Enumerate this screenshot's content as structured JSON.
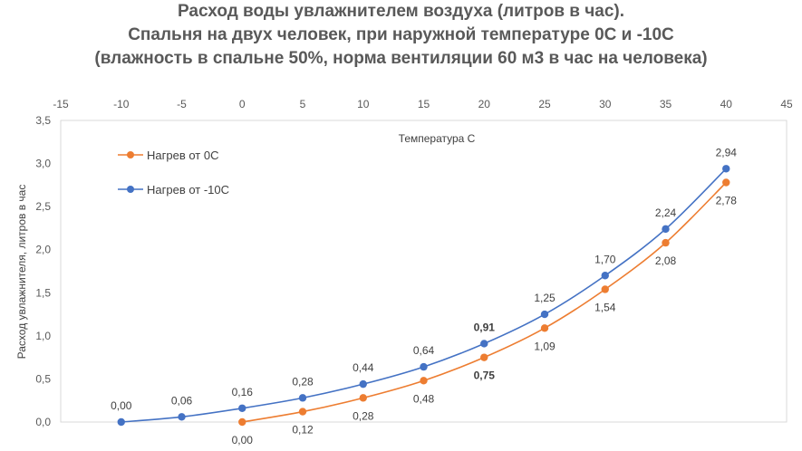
{
  "chart_data": {
    "type": "line",
    "title_lines": [
      "Расход воды увлажнителем воздуха (литров в час).",
      "Спальня на двух человек, при наружной температуре 0С и -10С",
      "(влажность в спальне 50%, норма вентиляции 60 м3 в час на человека)"
    ],
    "xlabel": "Температура С",
    "ylabel": "Расход увлажнителя, литров в час",
    "xlim": [
      -15,
      45
    ],
    "ylim": [
      0,
      3.5
    ],
    "x_ticks": [
      "-15",
      "-10",
      "-5",
      "0",
      "5",
      "10",
      "15",
      "20",
      "25",
      "30",
      "35",
      "40",
      "45"
    ],
    "y_ticks": [
      "0,0",
      "0,5",
      "1,0",
      "1,5",
      "2,0",
      "2,5",
      "3,0",
      "3,5"
    ],
    "x_axis_position": "top",
    "grid": false,
    "legend_position": "top-left",
    "series": [
      {
        "name": "Нагрев от 0С",
        "color": "#ED7D31",
        "x": [
          0,
          5,
          10,
          15,
          20,
          25,
          30,
          35,
          40
        ],
        "values": [
          0.0,
          0.12,
          0.28,
          0.48,
          0.75,
          1.09,
          1.54,
          2.08,
          2.78
        ],
        "labels": [
          "0,00",
          "0,12",
          "0,28",
          "0,48",
          "0,75",
          "1,09",
          "1,54",
          "2,08",
          "2,78"
        ],
        "label_position": "below"
      },
      {
        "name": "Нагрев от -10С",
        "color": "#4472C4",
        "x": [
          -10,
          -5,
          0,
          5,
          10,
          15,
          20,
          25,
          30,
          35,
          40
        ],
        "values": [
          0.0,
          0.06,
          0.16,
          0.28,
          0.44,
          0.64,
          0.91,
          1.25,
          1.7,
          2.24,
          2.94
        ],
        "labels": [
          "0,00",
          "0,06",
          "0,16",
          "0,28",
          "0,44",
          "0,64",
          "0,91",
          "1,25",
          "1,70",
          "2,24",
          "2,94"
        ],
        "label_position": "above"
      }
    ]
  }
}
